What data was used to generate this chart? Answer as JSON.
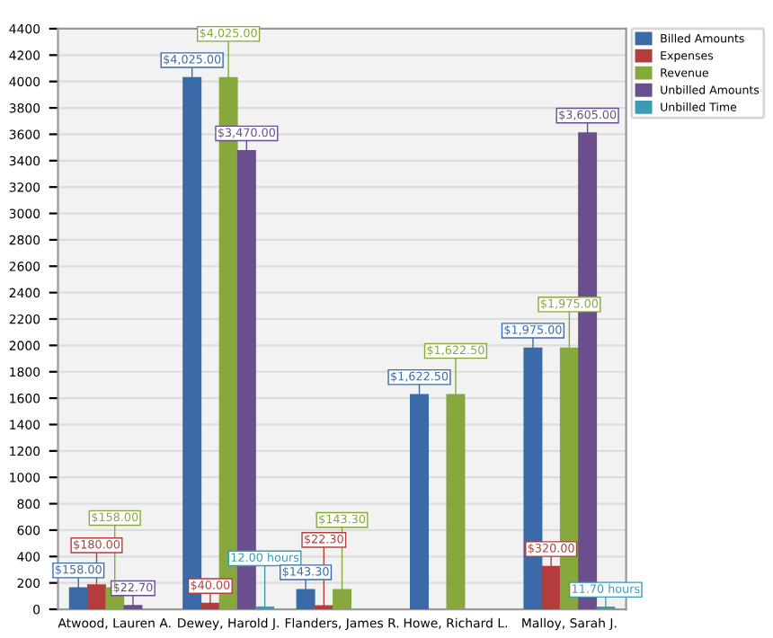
{
  "chart_data": {
    "type": "bar",
    "categories": [
      "Atwood, Lauren A.",
      "Dewey, Harold J.",
      "Flanders, James R.",
      "Howe, Richard L.",
      "Malloy, Sarah J."
    ],
    "series": [
      {
        "name": "Billed Amounts",
        "color": "#3a6aa8",
        "values": [
          158,
          4025,
          143.3,
          1622.5,
          1975
        ],
        "value_labels": [
          "$158.00",
          "$4,025.00",
          "$143.30",
          "$1,622.50",
          "$1,975.00"
        ]
      },
      {
        "name": "Expenses",
        "color": "#b43c3c",
        "values": [
          180,
          40,
          22.3,
          null,
          320
        ],
        "value_labels": [
          "$180.00",
          "$40.00",
          "$22.30",
          null,
          "$320.00"
        ]
      },
      {
        "name": "Revenue",
        "color": "#86a83c",
        "values": [
          158,
          4025,
          143.3,
          1622.5,
          1975
        ],
        "value_labels": [
          "$158.00",
          "$4,025.00",
          "$143.30",
          "$1,622.50",
          "$1,975.00"
        ]
      },
      {
        "name": "Unbilled Amounts",
        "color": "#6a4e8e",
        "values": [
          22.7,
          3470,
          null,
          null,
          3605
        ],
        "value_labels": [
          "$22.70",
          "$3,470.00",
          null,
          null,
          "$3,605.00"
        ]
      },
      {
        "name": "Unbilled Time",
        "color": "#3c9ab4",
        "values": [
          null,
          12,
          null,
          null,
          11.7
        ],
        "value_labels": [
          null,
          "12.00 hours",
          null,
          null,
          "11.70 hours"
        ]
      }
    ],
    "ylim": [
      0,
      4400
    ],
    "yticks": [
      0,
      200,
      400,
      600,
      800,
      1000,
      1200,
      1400,
      1600,
      1800,
      2000,
      2200,
      2400,
      2600,
      2800,
      3000,
      3200,
      3400,
      3600,
      3800,
      4000,
      4200,
      4400
    ],
    "grid": "y",
    "legend": "top right"
  }
}
